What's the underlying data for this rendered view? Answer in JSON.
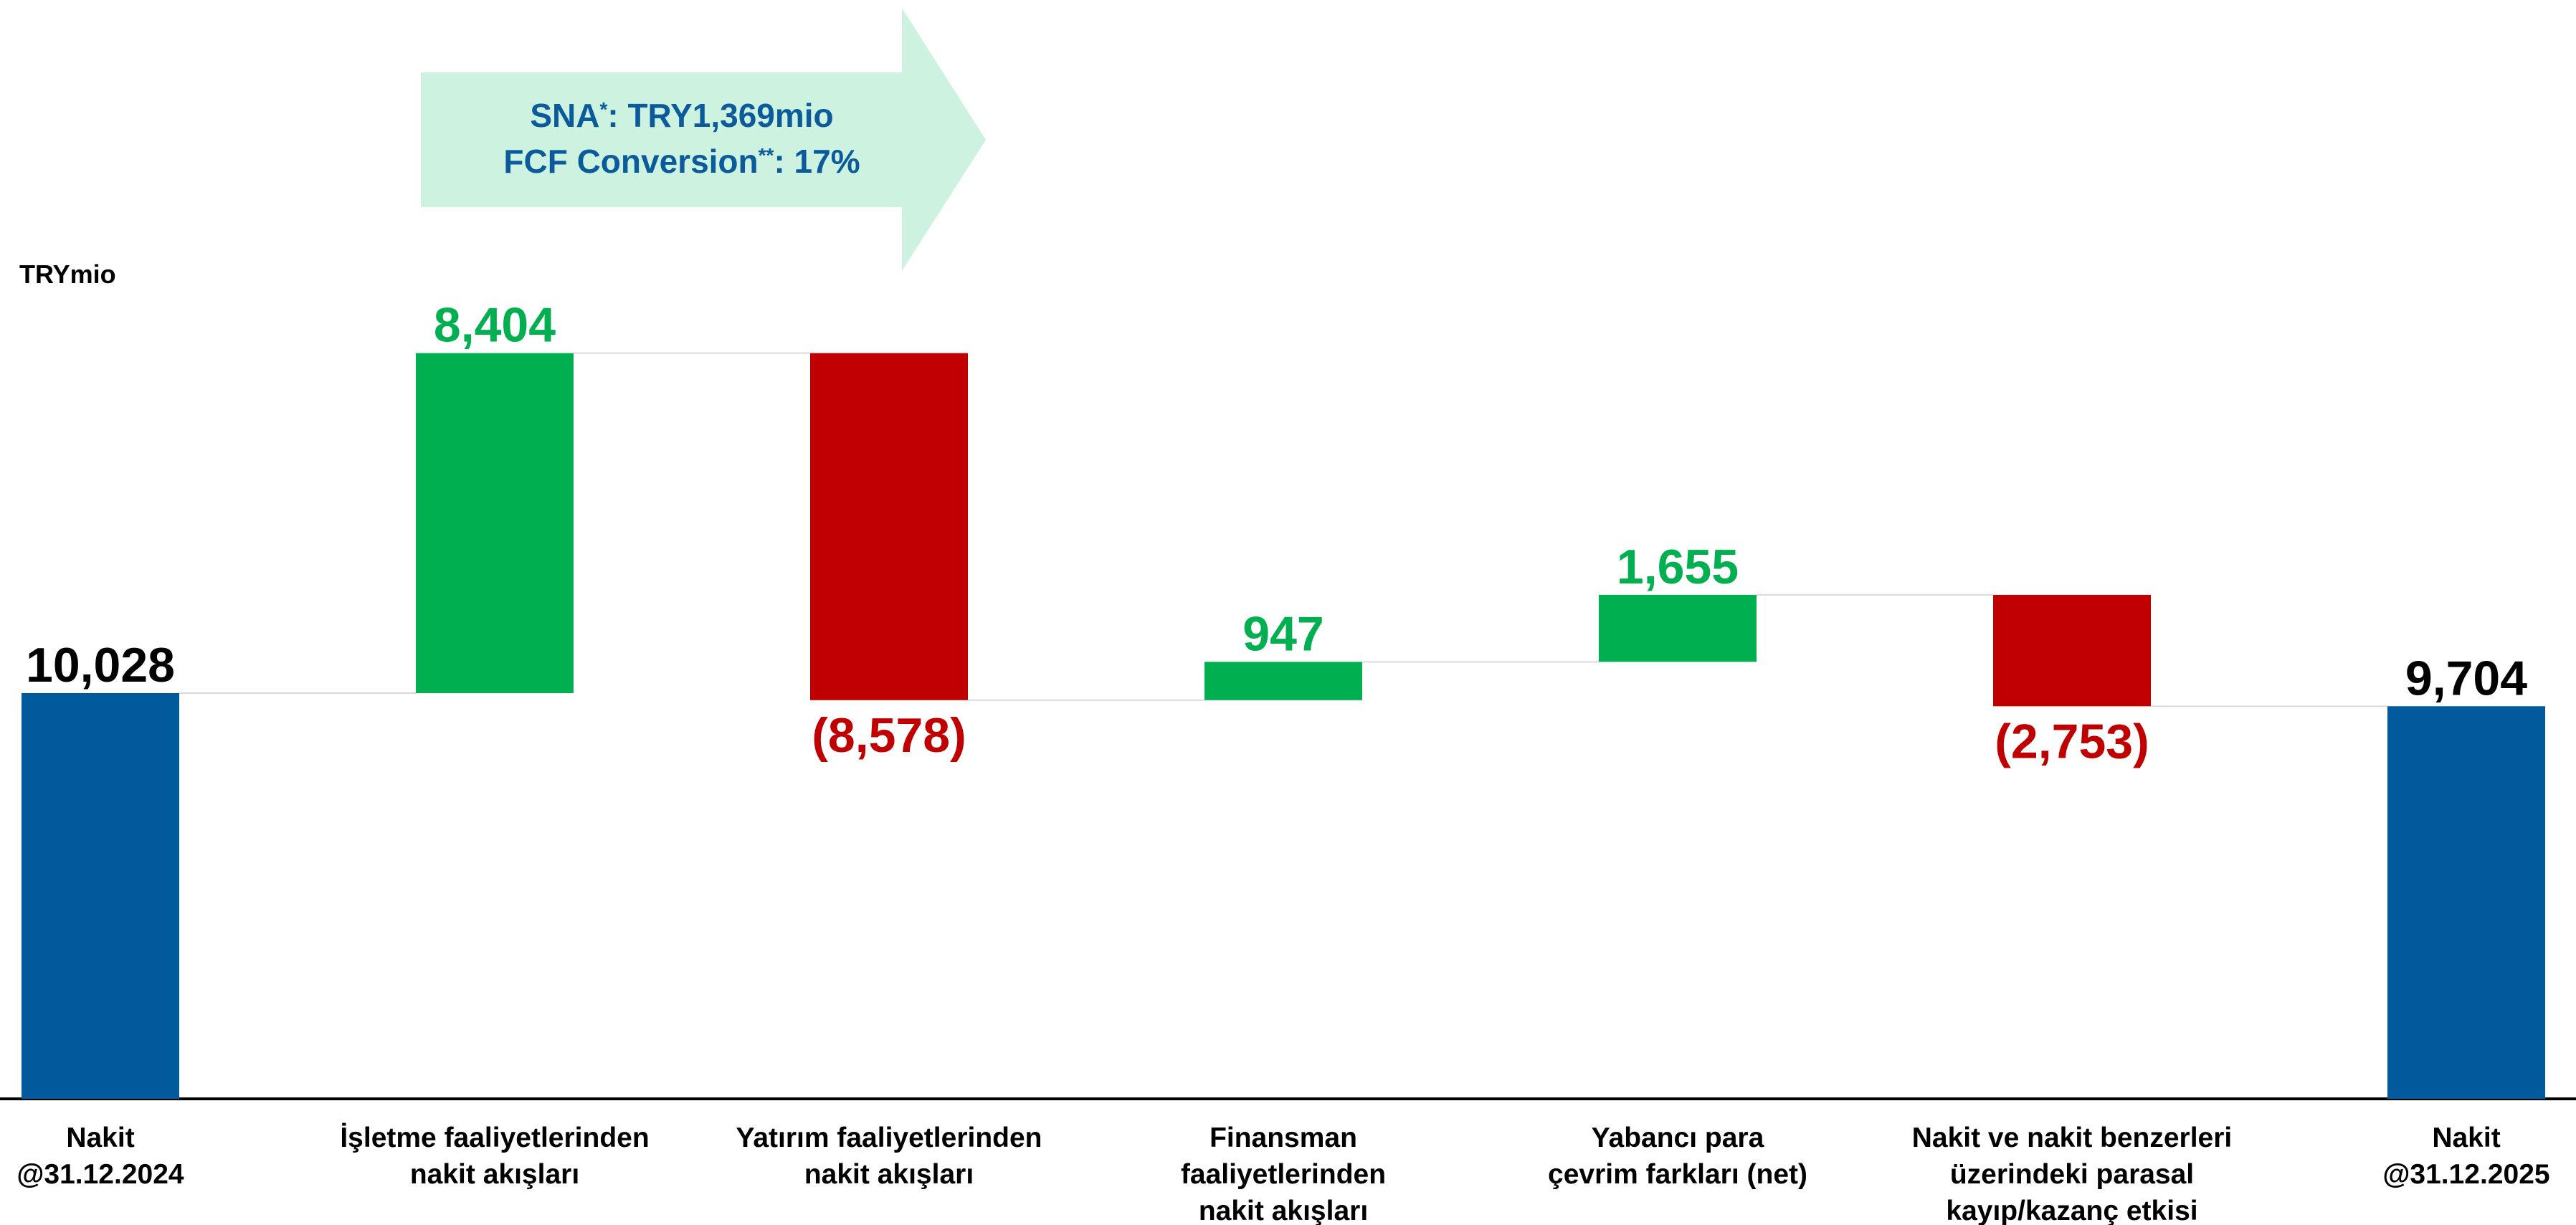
{
  "chart_data": {
    "type": "waterfall",
    "y_label": "TRYmio",
    "categories": [
      "Nakit\n@31.12.2024",
      "İşletme faaliyetlerinden\nnakit akışları",
      "Yatırım faaliyetlerinden\nnakit akışları",
      "Finansman\nfaaliyetlerinden\nnakit akışları",
      "Yabancı para\nçevrim farkları (net)",
      "Nakit ve nakit benzerleri\nüzerindeki parasal\nkayıp/kazanç etkisi",
      "Nakit\n@31.12.2025"
    ],
    "values": [
      10028,
      8404,
      -8578,
      947,
      1655,
      -2753,
      9704
    ],
    "value_labels": [
      "10,028",
      "8,404",
      "(8,578)",
      "947",
      "1,655",
      "(2,753)",
      "9,704"
    ],
    "measure": [
      "absolute",
      "relative",
      "relative",
      "relative",
      "relative",
      "relative",
      "absolute"
    ],
    "colors": [
      "#005a9c",
      "#00b050",
      "#c00000",
      "#00b050",
      "#00b050",
      "#c00000",
      "#005a9c"
    ],
    "ylim": [
      0,
      27000
    ],
    "annotation": [
      [
        {
          "text": "SNA"
        },
        {
          "text": "*",
          "sup": true
        },
        {
          "text": ": TRY1,369mio"
        }
      ],
      [
        {
          "text": "FCF Conversion"
        },
        {
          "text": "**",
          "sup": true
        },
        {
          "text": ": 17%"
        }
      ]
    ]
  }
}
